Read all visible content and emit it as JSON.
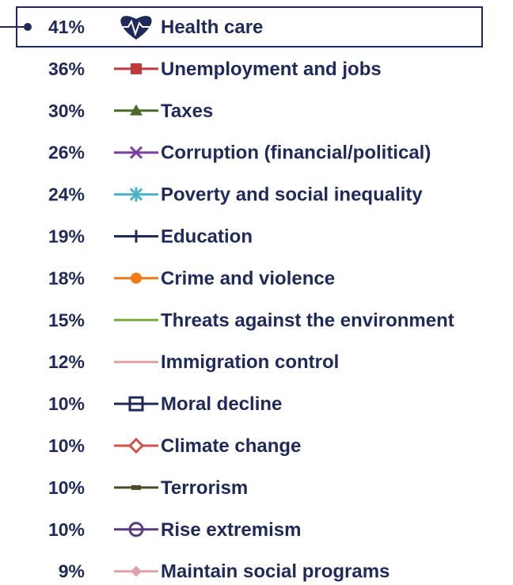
{
  "chart_data": {
    "type": "table",
    "title": "",
    "highlighted_index": 0,
    "rows": [
      {
        "value": "41%",
        "label": "Health care",
        "color": "#1f2a5a",
        "marker": "heart-icon"
      },
      {
        "value": "36%",
        "label": "Unemployment and jobs",
        "color": "#c0393b",
        "marker": "square"
      },
      {
        "value": "30%",
        "label": "Taxes",
        "color": "#4a6a2a",
        "marker": "triangle"
      },
      {
        "value": "26%",
        "label": "Corruption (financial/political)",
        "color": "#7a3fa0",
        "marker": "x"
      },
      {
        "value": "24%",
        "label": "Poverty and social inequality",
        "color": "#4bb3c8",
        "marker": "asterisk"
      },
      {
        "value": "19%",
        "label": "Education",
        "color": "#1f2a5a",
        "marker": "plus"
      },
      {
        "value": "18%",
        "label": "Crime and violence",
        "color": "#f07a1a",
        "marker": "circle"
      },
      {
        "value": "15%",
        "label": "Threats against the environment",
        "color": "#7aa83a",
        "marker": "none"
      },
      {
        "value": "12%",
        "label": "Immigration control",
        "color": "#e0a0a0",
        "marker": "none"
      },
      {
        "value": "10%",
        "label": "Moral decline",
        "color": "#1f2a5a",
        "marker": "square-open"
      },
      {
        "value": "10%",
        "label": "Climate change",
        "color": "#d0504a",
        "marker": "diamond-open"
      },
      {
        "value": "10%",
        "label": "Terrorism",
        "color": "#4a4a2a",
        "marker": "dash"
      },
      {
        "value": "10%",
        "label": "Rise extremism",
        "color": "#5a3a7a",
        "marker": "circle-open"
      },
      {
        "value": "9%",
        "label": "Maintain social programs",
        "color": "#e0a0a8",
        "marker": "diamond"
      }
    ]
  }
}
